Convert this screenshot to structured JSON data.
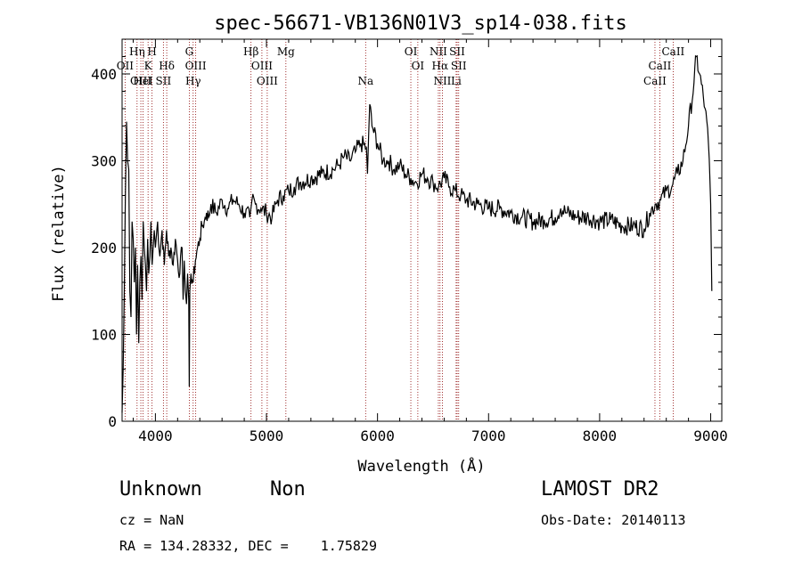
{
  "chart_data": {
    "type": "line",
    "title": "spec-56671-VB136N01V3_sp14-038.fits",
    "xlabel": "Wavelength (Å)",
    "ylabel": "Flux (relative)",
    "xlim": [
      3700,
      9100
    ],
    "ylim": [
      0,
      440
    ],
    "xticks": [
      4000,
      5000,
      6000,
      7000,
      8000,
      9000
    ],
    "yticks": [
      0,
      100,
      200,
      300,
      400
    ],
    "series": [
      {
        "x": [
          3700,
          3710,
          3720,
          3730,
          3740,
          3750,
          3760,
          3770,
          3780,
          3790,
          3800,
          3810,
          3820,
          3830,
          3840,
          3850,
          3860,
          3870,
          3880,
          3890,
          3900,
          3910,
          3920,
          3930,
          3940,
          3950,
          3960,
          3970,
          3980,
          3990,
          4000,
          4020,
          4040,
          4060,
          4080,
          4100,
          4120,
          4140,
          4160,
          4180,
          4200,
          4220,
          4240,
          4250,
          4260,
          4270,
          4280,
          4290,
          4300,
          4305,
          4310,
          4315,
          4320,
          4340,
          4360,
          4380,
          4400,
          4420,
          4440,
          4460,
          4480,
          4500,
          4550,
          4600,
          4650,
          4700,
          4750,
          4800,
          4850,
          4860,
          4870,
          4900,
          4950,
          5000,
          5050,
          5100,
          5150,
          5200,
          5250,
          5300,
          5400,
          5500,
          5600,
          5650,
          5700,
          5750,
          5800,
          5850,
          5900,
          5910,
          5920,
          5930,
          5950,
          6000,
          6050,
          6100,
          6150,
          6200,
          6250,
          6300,
          6350,
          6400,
          6450,
          6500,
          6550,
          6600,
          6650,
          6700,
          6750,
          6800,
          6900,
          7000,
          7100,
          7200,
          7300,
          7400,
          7500,
          7600,
          7650,
          7700,
          7800,
          7900,
          8000,
          8100,
          8200,
          8300,
          8400,
          8450,
          8500,
          8550,
          8600,
          8650,
          8700,
          8750,
          8800,
          8850,
          8870,
          8900,
          8950,
          8980,
          9000,
          9010
        ],
        "y": [
          10,
          60,
          150,
          260,
          345,
          300,
          290,
          150,
          120,
          230,
          210,
          160,
          200,
          100,
          180,
          90,
          160,
          190,
          140,
          230,
          200,
          180,
          150,
          210,
          170,
          190,
          230,
          180,
          200,
          220,
          200,
          230,
          190,
          220,
          180,
          220,
          190,
          200,
          180,
          210,
          185,
          170,
          200,
          140,
          185,
          150,
          135,
          170,
          140,
          40,
          150,
          160,
          170,
          160,
          185,
          200,
          210,
          225,
          230,
          240,
          235,
          250,
          240,
          255,
          245,
          255,
          250,
          240,
          235,
          245,
          255,
          250,
          245,
          240,
          235,
          255,
          260,
          265,
          270,
          275,
          280,
          285,
          290,
          295,
          305,
          300,
          310,
          320,
          315,
          285,
          330,
          365,
          340,
          320,
          300,
          300,
          290,
          295,
          285,
          280,
          275,
          285,
          280,
          275,
          270,
          280,
          270,
          265,
          260,
          255,
          250,
          245,
          245,
          240,
          235,
          230,
          232,
          235,
          245,
          240,
          235,
          235,
          230,
          232,
          225,
          225,
          222,
          240,
          250,
          255,
          265,
          270,
          285,
          300,
          340,
          390,
          420,
          400,
          360,
          320,
          250,
          150
        ]
      }
    ],
    "lines_top": [
      {
        "label": "Hη",
        "x": 3835
      },
      {
        "label": "H",
        "x": 3970
      },
      {
        "label": "G",
        "x": 4305
      },
      {
        "label": "Hβ",
        "x": 4861
      },
      {
        "label": "Mg",
        "x": 5175
      },
      {
        "label": "OI",
        "x": 6300
      },
      {
        "label": "NII",
        "x": 6548
      },
      {
        "label": "SII",
        "x": 6717
      },
      {
        "label": "CaII",
        "x": 8662
      }
    ],
    "lines_mid": [
      {
        "label": "OII",
        "x": 3727
      },
      {
        "label": "K",
        "x": 3934
      },
      {
        "label": "Hδ",
        "x": 4102
      },
      {
        "label": "OIII",
        "x": 4363
      },
      {
        "label": "OIII",
        "x": 4959
      },
      {
        "label": "OI",
        "x": 6363
      },
      {
        "label": "Hα",
        "x": 6563
      },
      {
        "label": "SII",
        "x": 6731
      },
      {
        "label": "CaII",
        "x": 8542
      }
    ],
    "lines_bot": [
      {
        "label": "OIII",
        "x": 3869
      },
      {
        "label": "HeI",
        "x": 3889
      },
      {
        "label": "SII",
        "x": 4072
      },
      {
        "label": "Hγ",
        "x": 4340
      },
      {
        "label": "OIII",
        "x": 5007
      },
      {
        "label": "Na",
        "x": 5893
      },
      {
        "label": "NII",
        "x": 6584
      },
      {
        "label": "Li",
        "x": 6708
      },
      {
        "label": "CaII",
        "x": 8498
      }
    ],
    "grid": false
  },
  "info": {
    "class": "Unknown",
    "subclass": "Non",
    "survey": "LAMOST DR2",
    "cz": "cz = NaN",
    "obs_date": "Obs-Date: 20140113",
    "radec": "RA = 134.28332, DEC =    1.75829"
  }
}
